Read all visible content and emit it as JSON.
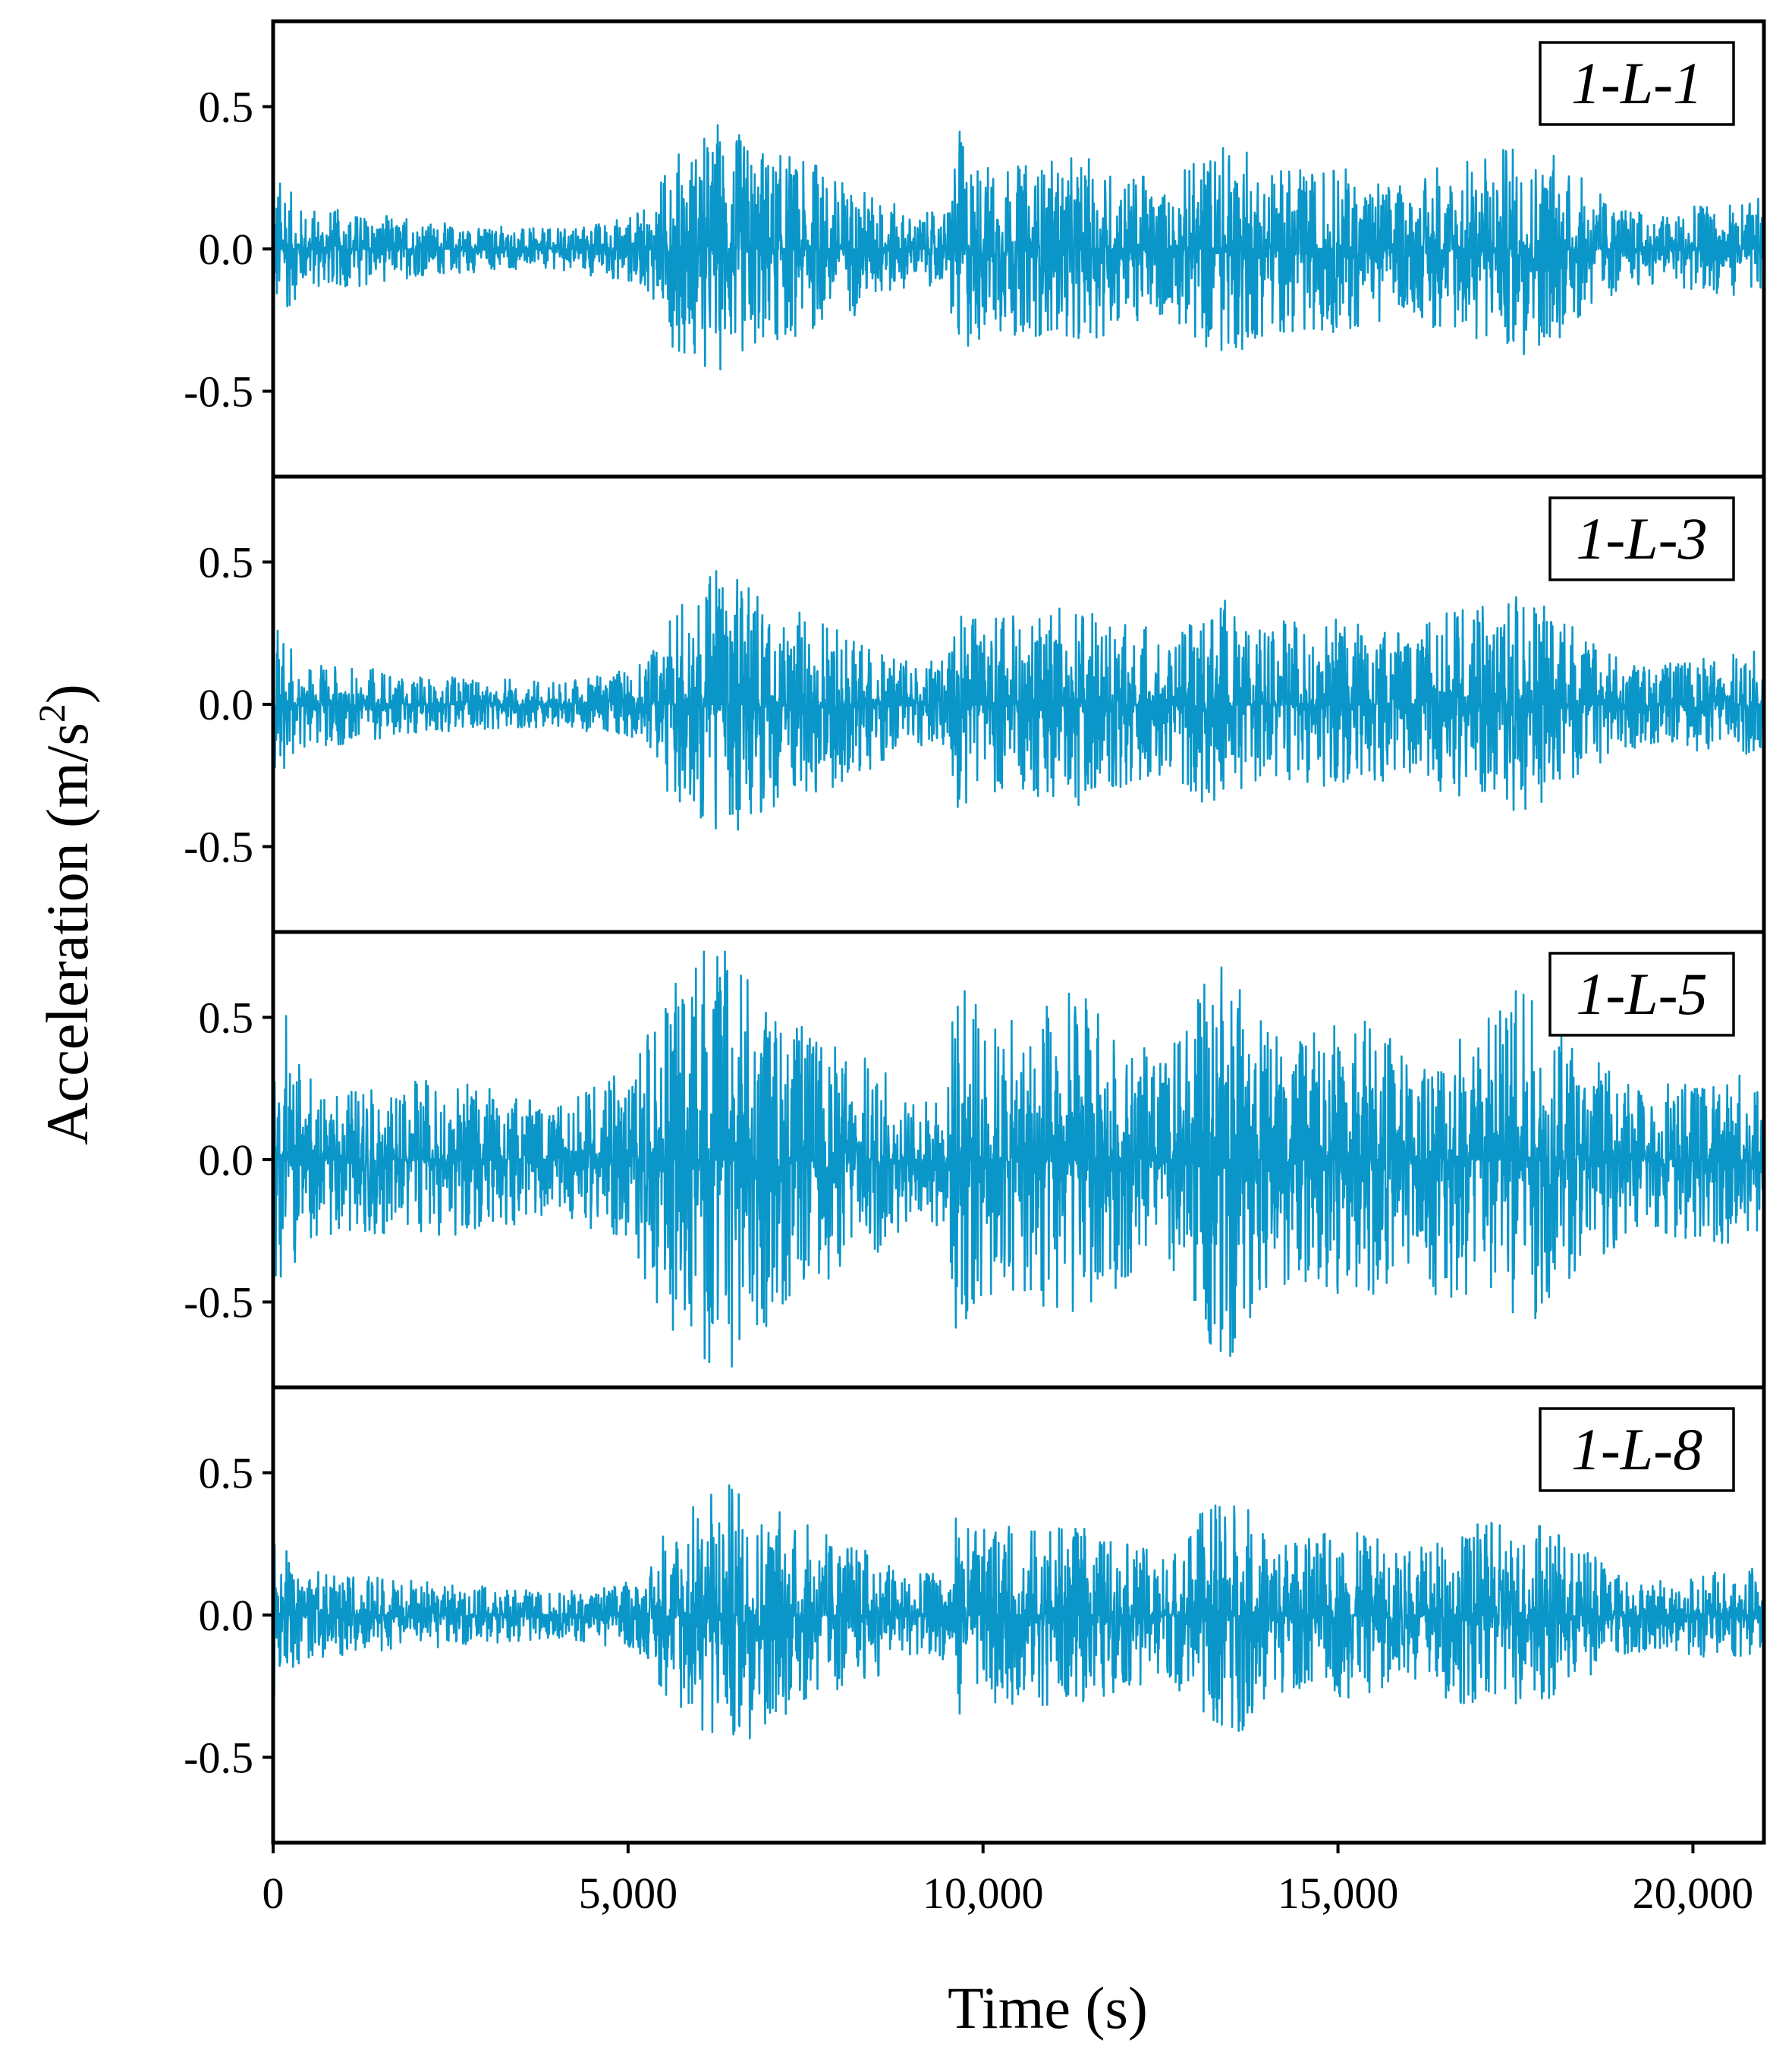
{
  "chart_data": {
    "type": "line",
    "title": "",
    "xlabel": "Time (s)",
    "ylabel_main": "Acceleration (m/s",
    "ylabel_sup": "2",
    "ylabel_close": ")",
    "xlim": [
      0,
      21000
    ],
    "ylim": [
      -0.8,
      0.8
    ],
    "x_ticks": [
      0,
      5000,
      10000,
      15000,
      20000
    ],
    "x_tick_labels": [
      "0",
      "5,000",
      "10,000",
      "15,000",
      "20,000"
    ],
    "y_ticks": [
      0.5,
      0.0,
      -0.5
    ],
    "y_tick_labels": [
      "0.5",
      "0.0",
      "-0.5"
    ],
    "line_color": "#0a96c8",
    "envelope_breakpoints_x": [
      0,
      150,
      400,
      1000,
      1500,
      2000,
      3000,
      4000,
      5000,
      5300,
      5600,
      6000,
      6300,
      6800,
      7300,
      7800,
      8500,
      9000,
      9500,
      9600,
      10000,
      10500,
      11000,
      11500,
      12000,
      12600,
      13000,
      13500,
      13900,
      14500,
      15000,
      15500,
      16000,
      16500,
      17000,
      17500,
      18000,
      18500,
      19000,
      19500,
      20000,
      20500,
      21000
    ],
    "series": [
      {
        "name": "1-L-1",
        "label": "1-L-1",
        "envelope": [
          0.3,
          0.24,
          0.15,
          0.14,
          0.12,
          0.1,
          0.08,
          0.07,
          0.12,
          0.15,
          0.34,
          0.4,
          0.44,
          0.38,
          0.32,
          0.28,
          0.2,
          0.12,
          0.14,
          0.44,
          0.32,
          0.3,
          0.32,
          0.32,
          0.28,
          0.22,
          0.34,
          0.4,
          0.32,
          0.28,
          0.3,
          0.26,
          0.22,
          0.3,
          0.34,
          0.38,
          0.34,
          0.24,
          0.15,
          0.12,
          0.15,
          0.16,
          0.18
        ]
      },
      {
        "name": "1-L-3",
        "label": "1-L-3",
        "envelope": [
          0.3,
          0.24,
          0.15,
          0.14,
          0.12,
          0.1,
          0.09,
          0.08,
          0.12,
          0.16,
          0.34,
          0.42,
          0.48,
          0.4,
          0.34,
          0.3,
          0.22,
          0.14,
          0.16,
          0.4,
          0.3,
          0.32,
          0.34,
          0.36,
          0.3,
          0.24,
          0.34,
          0.38,
          0.32,
          0.28,
          0.3,
          0.28,
          0.24,
          0.32,
          0.34,
          0.38,
          0.34,
          0.24,
          0.16,
          0.14,
          0.16,
          0.18,
          0.2
        ]
      },
      {
        "name": "1-L-5",
        "label": "1-L-5",
        "envelope": [
          0.7,
          0.55,
          0.3,
          0.25,
          0.26,
          0.28,
          0.26,
          0.18,
          0.32,
          0.45,
          0.6,
          0.74,
          0.8,
          0.62,
          0.5,
          0.42,
          0.36,
          0.2,
          0.26,
          0.7,
          0.52,
          0.48,
          0.6,
          0.56,
          0.42,
          0.36,
          0.58,
          0.74,
          0.52,
          0.42,
          0.5,
          0.48,
          0.36,
          0.52,
          0.5,
          0.66,
          0.48,
          0.36,
          0.3,
          0.26,
          0.28,
          0.3,
          0.34
        ]
      },
      {
        "name": "1-L-8",
        "label": "1-L-8",
        "envelope": [
          0.3,
          0.24,
          0.16,
          0.14,
          0.13,
          0.12,
          0.1,
          0.08,
          0.12,
          0.16,
          0.34,
          0.42,
          0.5,
          0.42,
          0.34,
          0.3,
          0.22,
          0.14,
          0.16,
          0.36,
          0.3,
          0.32,
          0.32,
          0.3,
          0.26,
          0.22,
          0.34,
          0.46,
          0.32,
          0.26,
          0.3,
          0.28,
          0.22,
          0.3,
          0.32,
          0.34,
          0.3,
          0.22,
          0.15,
          0.12,
          0.14,
          0.16,
          0.18
        ]
      }
    ]
  }
}
